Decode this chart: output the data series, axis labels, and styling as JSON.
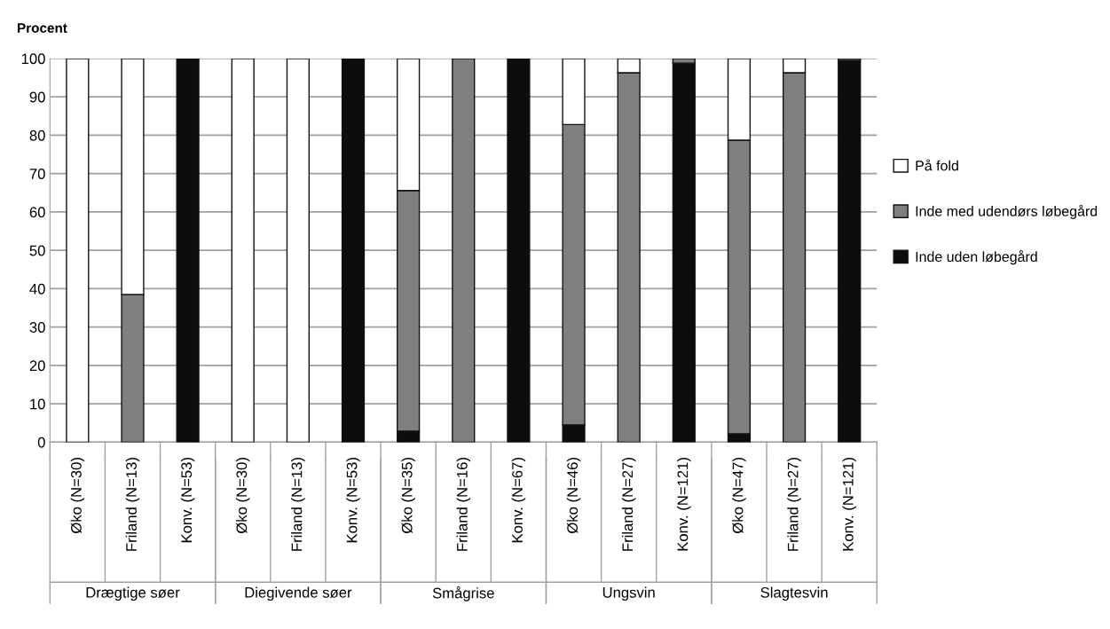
{
  "chart_data": {
    "type": "bar",
    "stacked": true,
    "ylabel": "Procent",
    "categories": [
      "Øko (N=30)",
      "Friland (N=13)",
      "Konv. (N=53)",
      "Øko (N=30)",
      "Friland (N=13)",
      "Konv. (N=53)",
      "Øko (N=35)",
      "Friland (N=16)",
      "Konv. (N=67)",
      "Øko (N=46)",
      "Friland (N=27)",
      "Konv. (N=121)",
      "Øko (N=47)",
      "Friland (N=27)",
      "Konv. (N=121)"
    ],
    "series": [
      {
        "name": "Inde uden løbegård",
        "color": "#0c0e0d",
        "values": [
          0,
          0,
          100,
          0,
          0,
          100,
          2.9,
          0,
          100,
          4.5,
          0,
          98.8,
          2.2,
          0,
          99.5
        ]
      },
      {
        "name": "Inde med udendørs løbegård",
        "color": "#807f7d",
        "values": [
          0,
          38.5,
          0,
          0,
          0,
          0,
          62.7,
          100,
          0,
          78.3,
          96.3,
          1.2,
          76.5,
          96.3,
          0.5
        ]
      },
      {
        "name": "På fold",
        "color": "#ffffff",
        "values": [
          100,
          61.5,
          0,
          100,
          100,
          0,
          34.4,
          0,
          0,
          17.2,
          3.7,
          0,
          21.3,
          3.7,
          0
        ]
      }
    ],
    "annotations": [
      "Drægtige søer",
      "Diegivende søer",
      "Smågrise",
      "Ungsvin",
      "Slagtesvin"
    ],
    "ylim": [
      0,
      100
    ],
    "yticks": [
      0,
      10,
      20,
      30,
      40,
      50,
      60,
      70,
      80,
      90,
      100
    ],
    "grid": "y",
    "legend": "right"
  }
}
